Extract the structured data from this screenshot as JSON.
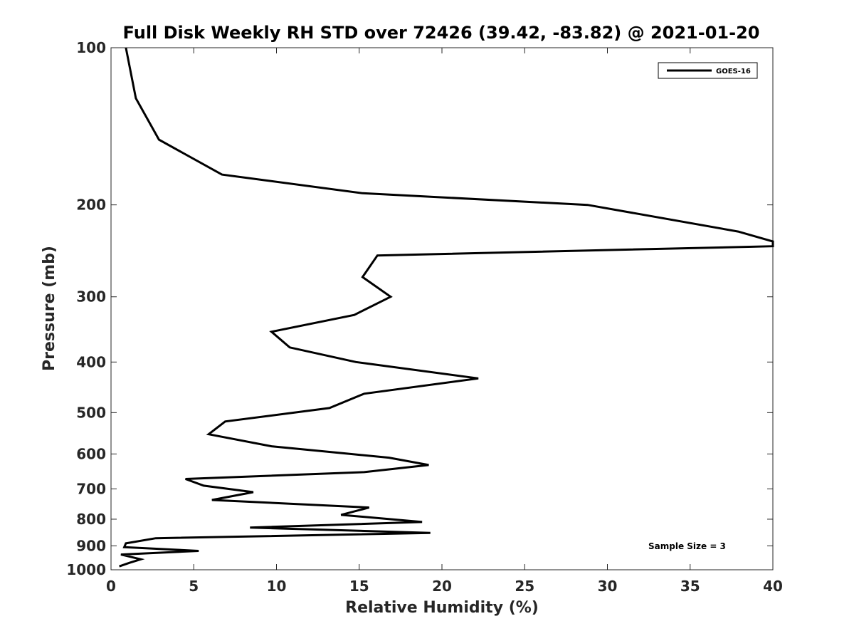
{
  "chart_data": {
    "type": "line",
    "title": "Full Disk Weekly RH STD over 72426 (39.42, -83.82) @ 2021-01-20",
    "xlabel": "Relative Humidity (%)",
    "ylabel": "Pressure (mb)",
    "xlim": [
      0,
      40
    ],
    "ylim": [
      100,
      1000
    ],
    "y_scale": "log",
    "y_reversed": true,
    "xticks": [
      0,
      5,
      10,
      15,
      20,
      25,
      30,
      35,
      40
    ],
    "yticks": [
      100,
      200,
      300,
      400,
      500,
      600,
      700,
      800,
      900,
      1000
    ],
    "grid": false,
    "legend_position": "top-right",
    "annotation": "Sample Size = 3",
    "series": [
      {
        "name": "GOES-16",
        "color": "#000000",
        "x": [
          0.9,
          1.5,
          2.9,
          6.7,
          15.2,
          28.8,
          37.9,
          40.0,
          40.0,
          16.1,
          15.2,
          16.9,
          14.7,
          9.7,
          10.8,
          14.8,
          22.2,
          15.3,
          13.2,
          6.9,
          5.9,
          9.7,
          16.8,
          19.2,
          15.3,
          4.5,
          5.6,
          8.6,
          6.1,
          15.6,
          13.9,
          18.8,
          8.4,
          19.3,
          2.7,
          0.9,
          0.8,
          5.3,
          0.6,
          1.8,
          1.1,
          0.5
        ],
        "y": [
          100,
          125,
          150,
          175,
          190,
          200,
          225,
          235,
          240,
          250,
          275,
          300,
          325,
          350,
          375,
          400,
          430,
          460,
          490,
          520,
          550,
          580,
          610,
          630,
          650,
          670,
          690,
          710,
          735,
          760,
          785,
          810,
          830,
          850,
          870,
          890,
          905,
          920,
          935,
          955,
          970,
          985
        ]
      }
    ]
  }
}
